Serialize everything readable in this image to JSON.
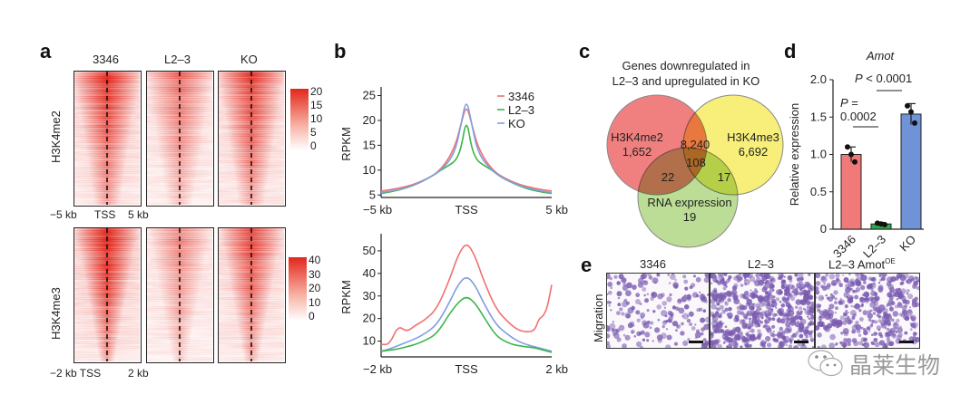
{
  "panels": {
    "a": {
      "label": "a",
      "columns": [
        "3346",
        "L2–3",
        "KO"
      ],
      "rows": [
        {
          "name": "H3K4me2",
          "xticks": [
            "−5 kb",
            "TSS",
            "5 kb"
          ],
          "colorbar_ticks": [
            "20",
            "15",
            "10",
            "5",
            "0"
          ],
          "intensity": [
            0.85,
            0.55,
            0.8
          ]
        },
        {
          "name": "H3K4me3",
          "xticks": [
            "−2 kb TSS",
            "2 kb"
          ],
          "colorbar_ticks": [
            "40",
            "30",
            "20",
            "10",
            "0"
          ],
          "intensity": [
            0.95,
            0.45,
            0.75
          ]
        }
      ]
    },
    "b": {
      "label": "b"
    },
    "c": {
      "label": "c",
      "title_line1": "Genes downregulated in",
      "title_line2": "L2–3 and upregulated in KO",
      "sets": [
        {
          "name": "H3K4me2",
          "only": "1,652",
          "color": "#f08080"
        },
        {
          "name": "H3K4me3",
          "only": "6,692",
          "color": "#f7ef7a"
        },
        {
          "name": "RNA expression",
          "only": "19",
          "color": "#b5d98a"
        }
      ],
      "intersections": {
        "me2_me3": "8,240",
        "me2_rna": "22",
        "me3_rna": "17",
        "all": "108"
      }
    },
    "d": {
      "label": "d"
    },
    "e": {
      "label": "e",
      "ylabel": "Migration",
      "columns": [
        {
          "title": "3346",
          "sup": "",
          "density": 0.22
        },
        {
          "title": "L2–3",
          "sup": "",
          "density": 0.62
        },
        {
          "title": "L2–3 Amot",
          "sup": "OE",
          "density": 0.42
        }
      ]
    }
  },
  "watermark": {
    "text": "晶莱生物",
    "icon": "wechat-icon"
  },
  "chart_data": [
    {
      "type": "line",
      "panel": "b-top",
      "title": "",
      "xlabel": "",
      "ylabel": "RPKM",
      "xticks": [
        "−5 kb",
        "TSS",
        "5 kb"
      ],
      "x": [
        -5,
        -4,
        -3,
        -2,
        -1.5,
        -1,
        -0.6,
        -0.3,
        0,
        0.3,
        0.6,
        1,
        1.5,
        2,
        3,
        4,
        5
      ],
      "ylim": [
        4.5,
        26
      ],
      "yticks": [
        5,
        10,
        15,
        20,
        25
      ],
      "legend": "top-right",
      "series": [
        {
          "name": "3346",
          "color": "#f07070",
          "values": [
            5.8,
            6.3,
            7.2,
            8.8,
            10.2,
            12.5,
            15.5,
            19.5,
            23.2,
            19.5,
            15.5,
            12.5,
            10.2,
            8.8,
            7.2,
            6.3,
            5.8
          ]
        },
        {
          "name": "L2–3",
          "color": "#3cb54a",
          "values": [
            5.3,
            5.9,
            7.0,
            8.8,
            10.0,
            11.0,
            12.0,
            14.5,
            20.5,
            14.5,
            12.0,
            11.0,
            10.0,
            8.6,
            6.9,
            5.8,
            5.3
          ]
        },
        {
          "name": "KO",
          "color": "#7f9fe0",
          "values": [
            5.5,
            6.0,
            7.0,
            8.8,
            10.0,
            11.8,
            14.5,
            19.5,
            24.5,
            19.5,
            14.5,
            11.8,
            10.0,
            8.6,
            7.0,
            6.0,
            5.5
          ]
        }
      ]
    },
    {
      "type": "line",
      "panel": "b-bottom",
      "title": "",
      "xlabel": "",
      "ylabel": "RPKM",
      "xticks": [
        "−2 kb",
        "TSS",
        "2 kb"
      ],
      "x": [
        -2,
        -1.8,
        -1.6,
        -1.4,
        -1.2,
        -1.0,
        -0.7,
        -0.4,
        -0.2,
        0,
        0.2,
        0.4,
        0.7,
        1.0,
        1.2,
        1.4,
        1.6,
        1.7,
        1.8,
        1.9,
        2.0
      ],
      "ylim": [
        3,
        56
      ],
      "yticks": [
        10,
        20,
        30,
        40,
        50
      ],
      "series": [
        {
          "name": "3346",
          "color": "#f07070",
          "values": [
            8.5,
            8.5,
            17,
            14,
            17,
            19,
            24,
            37,
            48,
            54,
            48,
            37,
            24,
            18,
            15,
            14,
            14.5,
            20,
            21,
            25,
            35
          ]
        },
        {
          "name": "KO",
          "color": "#7f9fe0",
          "values": [
            5.5,
            6.5,
            8,
            9.5,
            11,
            13,
            17,
            27,
            35,
            39,
            35,
            27,
            17,
            12.5,
            10,
            8.5,
            7.5,
            7,
            6.5,
            6,
            5.5
          ]
        },
        {
          "name": "L2–3",
          "color": "#3cb54a",
          "values": [
            5.5,
            6,
            6.5,
            7.5,
            8.5,
            10,
            13,
            22,
            27,
            30,
            27,
            21,
            12,
            9,
            8,
            7.5,
            7,
            6.5,
            6,
            5.5,
            5
          ]
        }
      ]
    },
    {
      "type": "bar",
      "panel": "d",
      "title": "Amot",
      "xlabel": "",
      "ylabel": "Relative expression",
      "categories": [
        "3346",
        "L2–3",
        "KO"
      ],
      "values": [
        1.0,
        0.07,
        1.54
      ],
      "errors": [
        0.1,
        0.02,
        0.14
      ],
      "points": [
        [
          1.1,
          1.0,
          0.9
        ],
        [
          0.08,
          0.07,
          0.06
        ],
        [
          1.65,
          1.57,
          1.42
        ]
      ],
      "colors": [
        "#f07a7a",
        "#2fa84a",
        "#6f93d6"
      ],
      "ylim": [
        0,
        2.0
      ],
      "yticks": [
        "0",
        "0.5",
        "1.0",
        "1.5",
        "2.0"
      ],
      "annotations": [
        {
          "text_line1": "P =",
          "text_line2": "0.0002",
          "between": [
            "3346",
            "L2–3"
          ]
        },
        {
          "text": "P < 0.0001",
          "between": [
            "L2–3",
            "KO"
          ]
        }
      ]
    }
  ]
}
